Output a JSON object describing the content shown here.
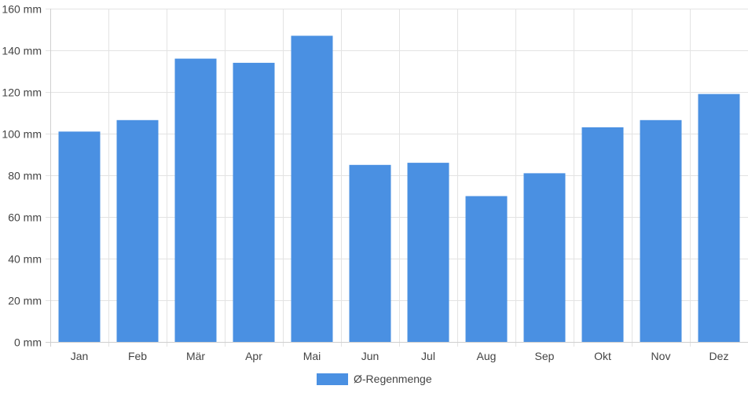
{
  "chart_data": {
    "type": "bar",
    "categories": [
      "Jan",
      "Feb",
      "Mär",
      "Apr",
      "Mai",
      "Jun",
      "Jul",
      "Aug",
      "Sep",
      "Okt",
      "Nov",
      "Dez"
    ],
    "series": [
      {
        "name": "Ø-Regenmenge",
        "values": [
          101,
          106.5,
          136,
          134,
          147,
          85,
          86,
          70,
          81,
          103,
          106.5,
          119
        ],
        "color": "#4a90e2"
      }
    ],
    "ylim": [
      0,
      160
    ],
    "yticks": [
      0,
      20,
      40,
      60,
      80,
      100,
      120,
      140,
      160
    ],
    "ytick_labels": [
      "0 mm",
      "20 mm",
      "40 mm",
      "60 mm",
      "80 mm",
      "100 mm",
      "120 mm",
      "140 mm",
      "160 mm"
    ],
    "grid": true,
    "legend_position": "bottom-center"
  }
}
